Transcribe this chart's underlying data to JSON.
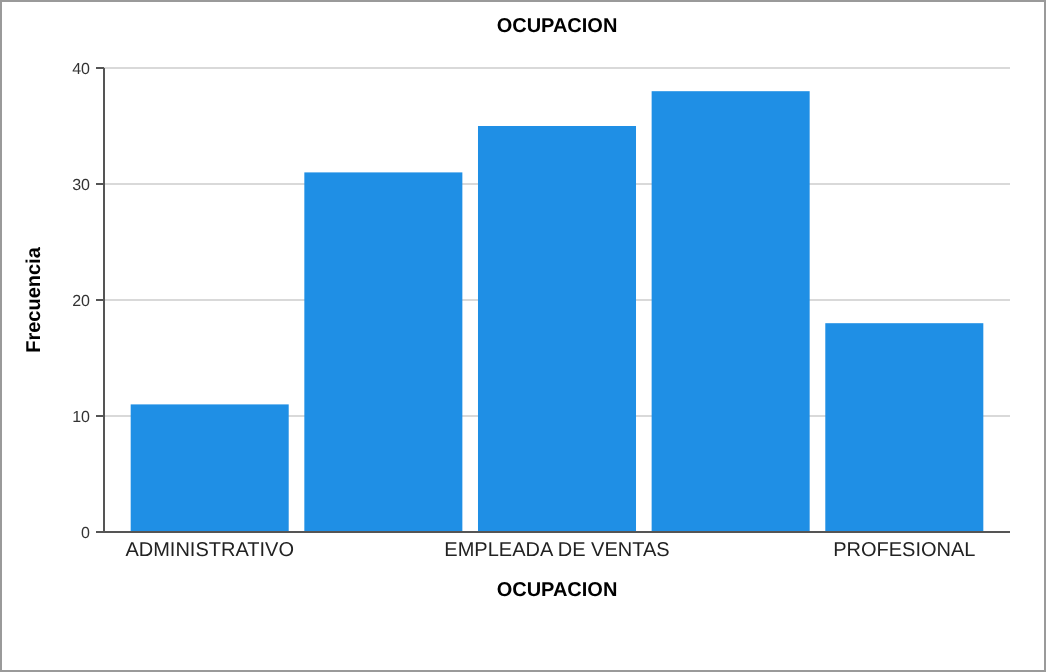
{
  "chart_data": {
    "type": "bar",
    "title": "OCUPACION",
    "xlabel": "OCUPACION",
    "ylabel": "Frecuencia",
    "categories": [
      "ADMINISTRATIVO",
      null,
      "EMPLEADA DE VENTAS",
      null,
      "PROFESIONAL"
    ],
    "values": [
      11,
      31,
      35,
      38,
      18
    ],
    "color": "#1f8fe5",
    "ylim": [
      0,
      40
    ],
    "yticks": [
      0,
      10,
      20,
      30,
      40
    ],
    "grid": "y"
  }
}
